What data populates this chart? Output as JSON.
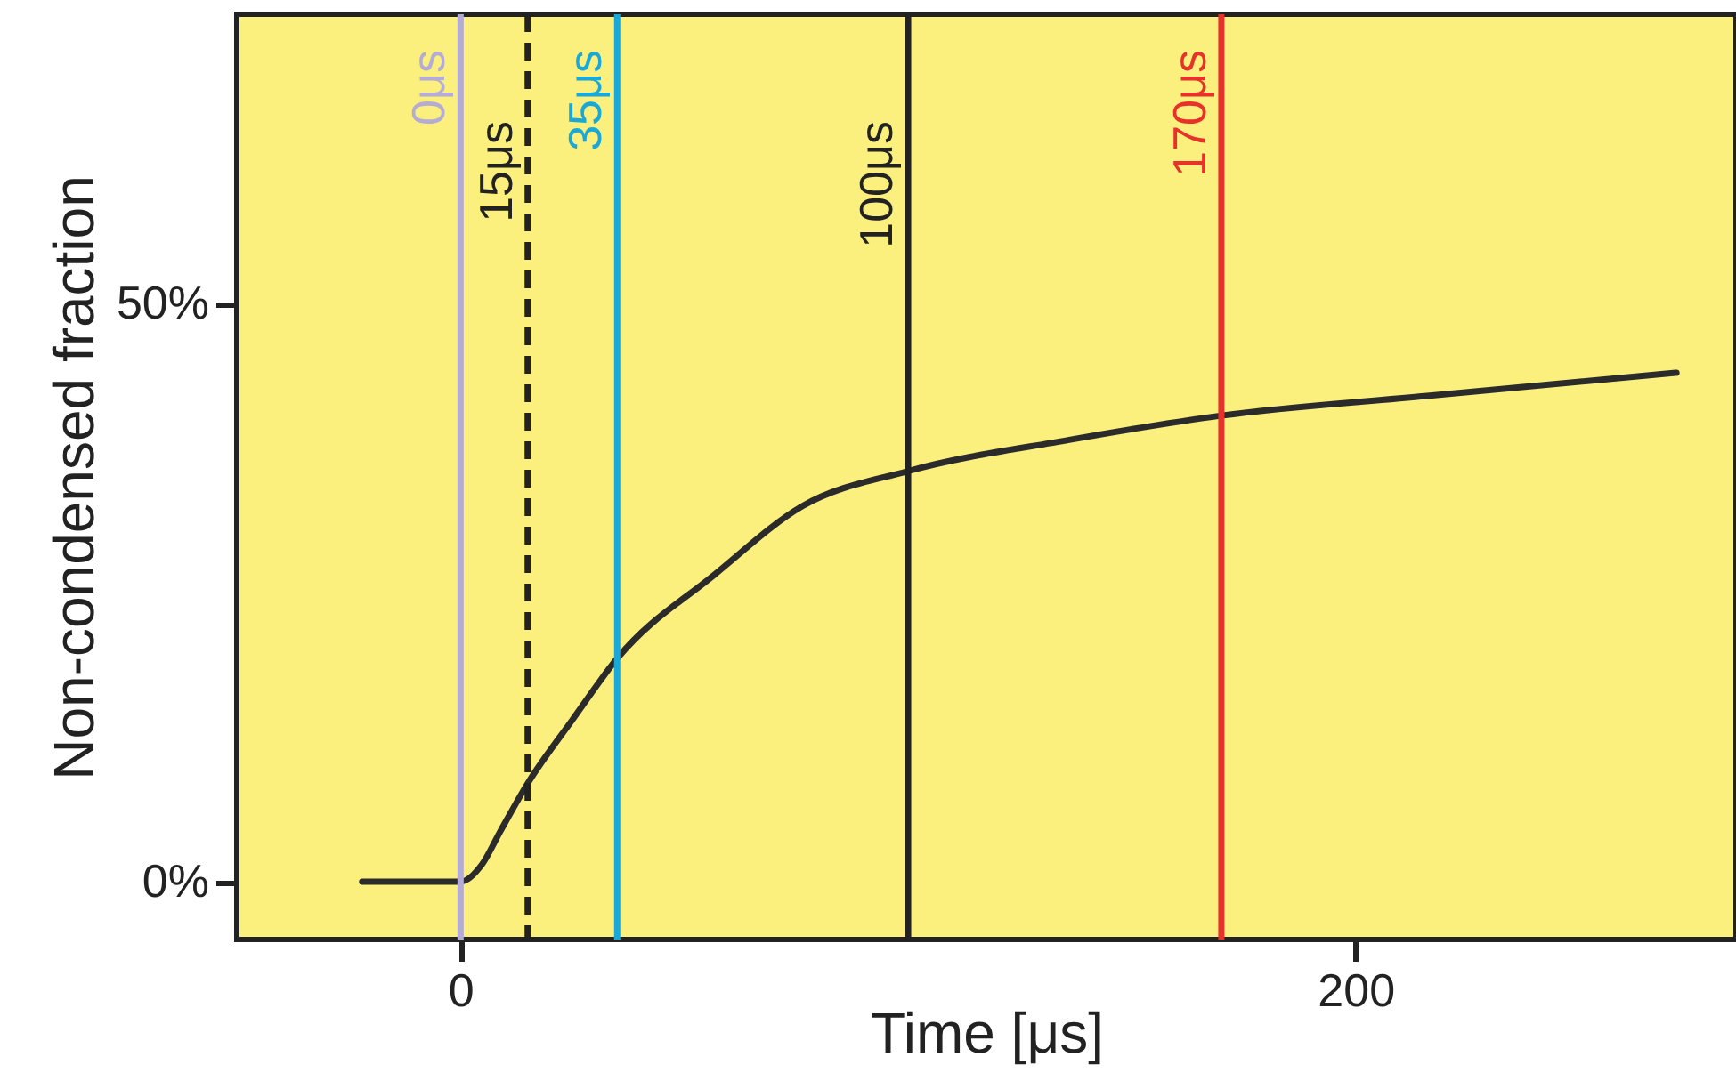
{
  "chart_data": {
    "type": "line",
    "xlabel": "Time [μs]",
    "ylabel": "Non-condensed fraction",
    "xlim": [
      -50,
      285
    ],
    "ylim": [
      -5,
      75
    ],
    "xticks": [
      0,
      200
    ],
    "yticks": [
      {
        "value": 0,
        "label": "0%"
      },
      {
        "value": 50,
        "label": "50%"
      }
    ],
    "grid": false,
    "marker": "none",
    "line_style": "solid",
    "series": [
      {
        "color": "#2b2b2b",
        "x": [
          -22,
          0,
          4.8,
          8.8,
          15,
          25,
          35,
          56.6,
          76.5,
          100,
          136,
          170,
          216,
          271.7
        ],
        "values": [
          0,
          0,
          1.5,
          4.3,
          8.5,
          14,
          19.3,
          26.5,
          32.5,
          35.5,
          38.2,
          40.3,
          42,
          44
        ]
      }
    ],
    "ref_lines": [
      {
        "axis": "x",
        "value": 0,
        "label": "0μs",
        "color": "#b4acd4"
      },
      {
        "axis": "x",
        "value": 15,
        "label": "15μs",
        "color": "#222222",
        "line_style": "dashed"
      },
      {
        "axis": "x",
        "value": 35,
        "label": "35μs",
        "color": "#1aa8d8"
      },
      {
        "axis": "x",
        "value": 100,
        "label": "100μs",
        "color": "#222222"
      },
      {
        "axis": "x",
        "value": 170,
        "label": "170μs",
        "color": "#e8312a"
      }
    ]
  }
}
